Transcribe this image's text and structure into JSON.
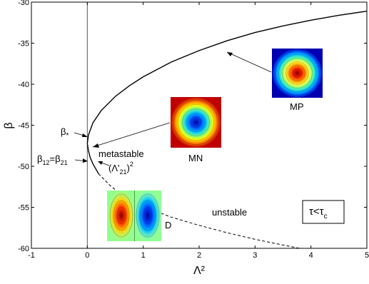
{
  "chart_data": {
    "type": "line",
    "xlabel": "Λ²",
    "ylabel": "β",
    "xlim": [
      -1,
      5
    ],
    "ylim": [
      -60,
      -30
    ],
    "xticks": [
      "-1",
      "0",
      "1",
      "2",
      "3",
      "4",
      "5"
    ],
    "yticks": [
      "-30",
      "-35",
      "-40",
      "-45",
      "-50",
      "-55",
      "-60"
    ],
    "grid": false,
    "series": [
      {
        "style": "solid",
        "color": "#000000",
        "x": [
          0.0,
          0.02,
          0.1,
          0.25,
          0.5,
          0.75,
          1.0,
          1.5,
          2.0,
          2.5,
          3.0,
          3.5,
          4.0,
          4.5,
          5.0
        ],
        "y": [
          -47.2,
          -46.2,
          -44.7,
          -43.2,
          -41.5,
          -40.2,
          -39.1,
          -37.3,
          -35.9,
          -34.7,
          -33.7,
          -32.9,
          -32.2,
          -31.6,
          -31.1
        ]
      },
      {
        "style": "solid",
        "color": "#000000",
        "x": [
          0.0,
          0.02,
          0.05,
          0.1,
          0.15,
          0.2
        ],
        "y": [
          -47.2,
          -48.1,
          -48.9,
          -49.7,
          -50.3,
          -50.9
        ]
      },
      {
        "style": "dashed",
        "color": "#000000",
        "x": [
          0.2,
          0.4,
          0.6,
          0.8,
          1.0,
          1.5,
          2.0,
          2.5,
          3.0,
          3.5,
          3.8
        ],
        "y": [
          -50.9,
          -52.3,
          -53.4,
          -54.2,
          -54.9,
          -56.2,
          -57.2,
          -58.1,
          -58.9,
          -59.6,
          -60.0
        ]
      }
    ],
    "vertical_line_x": 0,
    "annotations": {
      "beta_star": "β",
      "beta_star_sub": "*",
      "beta12_main": "β",
      "beta12_sub1": "12",
      "beta12_eq": "=β",
      "beta12_sub2": "21",
      "lambda_prefix": "(Λ'",
      "lambda_sub": "21",
      "lambda_suffix": ")",
      "lambda_sup": "2",
      "metastable": "metastable",
      "unstable": "unstable",
      "mn": "MN",
      "mp": "MP",
      "d": "D",
      "tau": "τ<τ",
      "tau_sub": "c"
    }
  }
}
